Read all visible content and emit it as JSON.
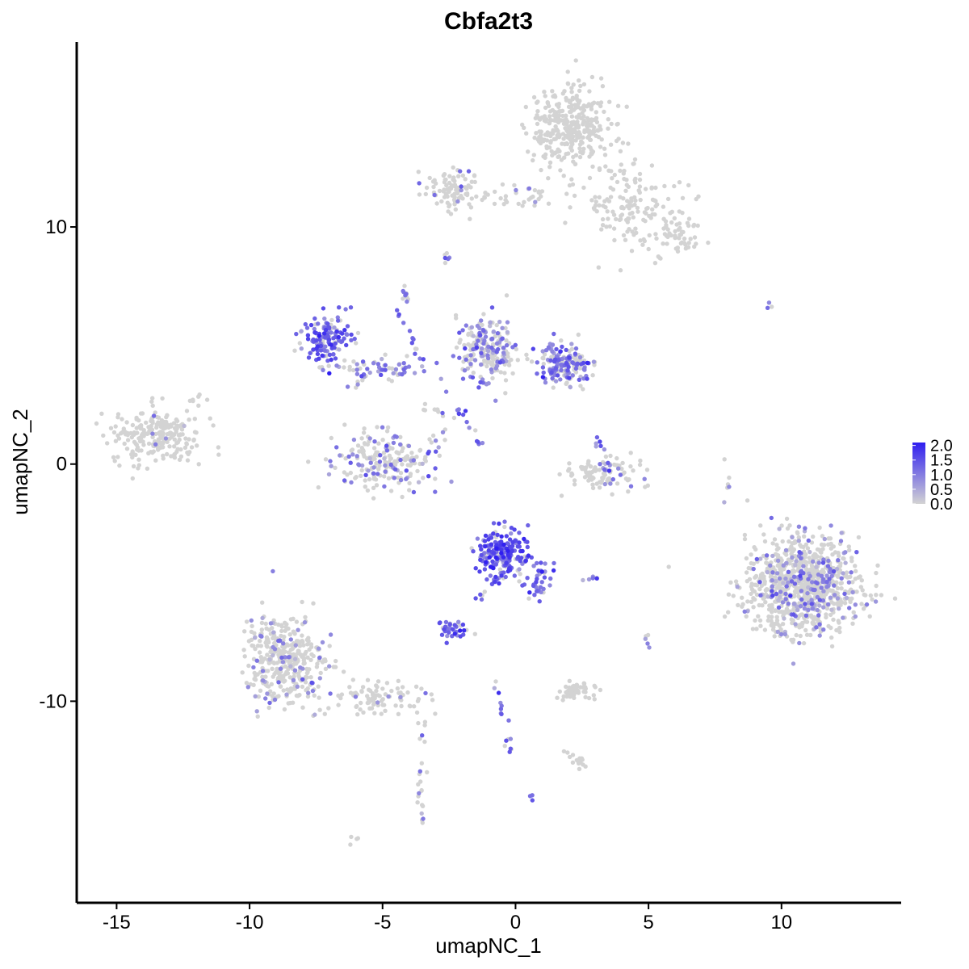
{
  "chart_data": {
    "type": "scatter",
    "title": "Cbfa2t3",
    "xlabel": "umapNC_1",
    "ylabel": "umapNC_2",
    "xlim": [
      -16.5,
      14.5
    ],
    "ylim": [
      -18.5,
      17.8
    ],
    "x_ticks": [
      -15,
      -10,
      -5,
      0,
      5,
      10
    ],
    "x_tick_labels": [
      "-15",
      "-10",
      "-5",
      "0",
      "5",
      "10"
    ],
    "y_ticks": [
      10,
      0,
      -10
    ],
    "y_tick_labels": [
      "10",
      "0",
      "-10"
    ],
    "grid": false,
    "legend_position": "right",
    "color_scale": {
      "low_color": "#d3d3d3",
      "high_color": "#2f1ef0",
      "min": 0.0,
      "max": 2.1,
      "ticks": [
        2.0,
        1.5,
        1.0,
        0.5,
        0.0
      ],
      "tick_labels": [
        "2.0",
        "1.5",
        "1.0",
        "0.5",
        "0.0"
      ]
    },
    "clusters": [
      {
        "name": "top-right-dense",
        "cx": 2.0,
        "cy": 14.2,
        "sx": 0.75,
        "sy": 0.9,
        "n": 340,
        "expr_frac": 0.0,
        "expr_mean": 0.0
      },
      {
        "name": "top-right-arm",
        "cx": 4.3,
        "cy": 11.0,
        "sx": 1.0,
        "sy": 0.9,
        "n": 140,
        "expr_frac": 0.0,
        "expr_mean": 0.0
      },
      {
        "name": "top-right-tail",
        "cx": 5.8,
        "cy": 9.5,
        "sx": 0.55,
        "sy": 0.4,
        "n": 60,
        "expr_frac": 0.0,
        "expr_mean": 0.0
      },
      {
        "name": "top-middle",
        "cx": -2.3,
        "cy": 11.5,
        "sx": 0.55,
        "sy": 0.45,
        "n": 90,
        "expr_frac": 0.06,
        "expr_mean": 0.9
      },
      {
        "name": "top-bridge",
        "cx": 0.4,
        "cy": 11.3,
        "sx": 0.9,
        "sy": 0.25,
        "n": 35,
        "expr_frac": 0.05,
        "expr_mean": 0.8
      },
      {
        "name": "left-far",
        "cx": -13.5,
        "cy": 1.2,
        "sx": 0.85,
        "sy": 0.6,
        "n": 230,
        "expr_frac": 0.03,
        "expr_mean": 0.6
      },
      {
        "name": "mid-loop",
        "cx": -7.1,
        "cy": 5.3,
        "sx": 0.45,
        "sy": 0.45,
        "n": 130,
        "expr_frac": 0.85,
        "expr_mean": 1.3
      },
      {
        "name": "mid-arm",
        "cx": -5.2,
        "cy": 4.0,
        "sx": 0.9,
        "sy": 0.3,
        "n": 70,
        "expr_frac": 0.6,
        "expr_mean": 1.0
      },
      {
        "name": "center-cluster",
        "cx": -1.1,
        "cy": 4.8,
        "sx": 0.55,
        "sy": 0.7,
        "n": 220,
        "expr_frac": 0.45,
        "expr_mean": 0.9
      },
      {
        "name": "center-right",
        "cx": 1.8,
        "cy": 4.2,
        "sx": 0.5,
        "sy": 0.45,
        "n": 180,
        "expr_frac": 0.65,
        "expr_mean": 1.1
      },
      {
        "name": "bowl",
        "cx": -5.0,
        "cy": 0.2,
        "sx": 1.0,
        "sy": 0.6,
        "n": 210,
        "expr_frac": 0.35,
        "expr_mean": 0.9
      },
      {
        "name": "small-arc",
        "cx": 3.3,
        "cy": -0.4,
        "sx": 0.7,
        "sy": 0.35,
        "n": 95,
        "expr_frac": 0.05,
        "expr_mean": 0.8
      },
      {
        "name": "center-lower",
        "cx": -0.5,
        "cy": -3.8,
        "sx": 0.5,
        "sy": 0.5,
        "n": 200,
        "expr_frac": 0.85,
        "expr_mean": 1.4
      },
      {
        "name": "center-lower-tail",
        "cx": 0.9,
        "cy": -4.8,
        "sx": 0.35,
        "sy": 0.45,
        "n": 40,
        "expr_frac": 0.8,
        "expr_mean": 1.3
      },
      {
        "name": "small-lower",
        "cx": -2.4,
        "cy": -7.0,
        "sx": 0.3,
        "sy": 0.2,
        "n": 40,
        "expr_frac": 0.85,
        "expr_mean": 1.3
      },
      {
        "name": "right-big",
        "cx": 10.8,
        "cy": -5.1,
        "sx": 1.05,
        "sy": 1.0,
        "n": 900,
        "expr_frac": 0.2,
        "expr_mean": 0.8
      },
      {
        "name": "bottom-left",
        "cx": -8.7,
        "cy": -8.3,
        "sx": 0.75,
        "sy": 1.0,
        "n": 380,
        "expr_frac": 0.15,
        "expr_mean": 0.8
      },
      {
        "name": "bottom-left-arm",
        "cx": -5.2,
        "cy": -9.8,
        "sx": 0.8,
        "sy": 0.35,
        "n": 90,
        "expr_frac": 0.05,
        "expr_mean": 0.7
      },
      {
        "name": "bottom-small",
        "cx": 2.3,
        "cy": -9.6,
        "sx": 0.35,
        "sy": 0.15,
        "n": 50,
        "expr_frac": 0.0,
        "expr_mean": 0.0
      },
      {
        "name": "bottom-dot",
        "cx": 2.4,
        "cy": -12.5,
        "sx": 0.15,
        "sy": 0.12,
        "n": 14,
        "expr_frac": 0.0,
        "expr_mean": 0.0
      }
    ],
    "strands": [
      {
        "name": "strand-1",
        "x0": -4.3,
        "y0": 7.5,
        "x1": -4.0,
        "y1": 6.8,
        "n": 10,
        "expr_frac": 0.8,
        "expr_mean": 1.0
      },
      {
        "name": "strand-2",
        "x0": -4.5,
        "y0": 6.5,
        "x1": -3.6,
        "y1": 4.3,
        "n": 12,
        "expr_frac": 0.9,
        "expr_mean": 1.2
      },
      {
        "name": "strand-3",
        "x0": -2.5,
        "y0": 3.0,
        "x1": -1.3,
        "y1": 0.8,
        "n": 14,
        "expr_frac": 0.8,
        "expr_mean": 1.2
      },
      {
        "name": "strand-4",
        "x0": -3.7,
        "y0": 2.5,
        "x1": -2.3,
        "y1": 2.0,
        "n": 10,
        "expr_frac": 0.3,
        "expr_mean": 0.9
      },
      {
        "name": "strand-5",
        "x0": -2.7,
        "y0": 8.8,
        "x1": -2.5,
        "y1": 8.5,
        "n": 6,
        "expr_frac": 0.6,
        "expr_mean": 0.9
      },
      {
        "name": "strand-6",
        "x0": -1.5,
        "y0": -6.0,
        "x1": -0.5,
        "y1": -4.5,
        "n": 12,
        "expr_frac": 0.9,
        "expr_mean": 1.3
      },
      {
        "name": "strand-7",
        "x0": -0.8,
        "y0": -9.2,
        "x1": -0.2,
        "y1": -12.3,
        "n": 16,
        "expr_frac": 0.5,
        "expr_mean": 1.0
      },
      {
        "name": "strand-8",
        "x0": -3.5,
        "y0": -10.5,
        "x1": -3.6,
        "y1": -15.2,
        "n": 24,
        "expr_frac": 0.1,
        "expr_mean": 0.8
      },
      {
        "name": "strand-9",
        "x0": 3.0,
        "y0": 1.2,
        "x1": 3.5,
        "y1": -0.3,
        "n": 12,
        "expr_frac": 0.8,
        "expr_mean": 1.0
      },
      {
        "name": "strand-10",
        "x0": 2.5,
        "y0": -4.9,
        "x1": 3.2,
        "y1": -4.8,
        "n": 6,
        "expr_frac": 0.7,
        "expr_mean": 1.0
      },
      {
        "name": "strand-11",
        "x0": 7.9,
        "y0": 0.3,
        "x1": 8.0,
        "y1": -1.7,
        "n": 6,
        "expr_frac": 0.2,
        "expr_mean": 0.8
      },
      {
        "name": "strand-12",
        "x0": -12.3,
        "y0": 2.7,
        "x1": -11.5,
        "y1": 2.9,
        "n": 6,
        "expr_frac": 0.0,
        "expr_mean": 0.0
      },
      {
        "name": "strand-13",
        "x0": 4.9,
        "y0": -7.2,
        "x1": 5.1,
        "y1": -7.8,
        "n": 5,
        "expr_frac": 0.3,
        "expr_mean": 0.8
      },
      {
        "name": "strand-14",
        "x0": -6.2,
        "y0": -16.0,
        "x1": -6.0,
        "y1": -15.8,
        "n": 4,
        "expr_frac": 0.0,
        "expr_mean": 0.0
      },
      {
        "name": "strand-15",
        "x0": 0.6,
        "y0": -14.0,
        "x1": 0.7,
        "y1": -14.1,
        "n": 3,
        "expr_frac": 1.0,
        "expr_mean": 1.2
      },
      {
        "name": "strand-16",
        "x0": 9.4,
        "y0": 6.7,
        "x1": 9.7,
        "y1": 6.8,
        "n": 3,
        "expr_frac": 0.5,
        "expr_mean": 1.0
      },
      {
        "name": "strand-17",
        "x0": 1.7,
        "y0": -12.0,
        "x1": 2.5,
        "y1": -12.8,
        "n": 5,
        "expr_frac": 0.0,
        "expr_mean": 0.0
      }
    ]
  }
}
